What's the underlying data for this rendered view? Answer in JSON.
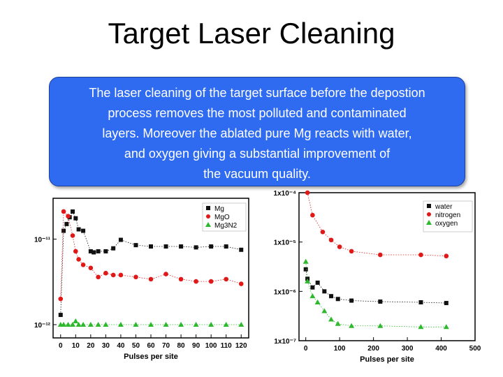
{
  "slide": {
    "title": "Target Laser Cleaning",
    "callout_text": "The laser cleaning of the target surface before the depostion\nprocess removes the most polluted and contaminated\nlayers. Moreover the ablated pure Mg reacts with water,\nand oxygen giving a substantial improvement of\nthe vacuum quality.",
    "callout_color": "#2f6bf0"
  },
  "chart_data": [
    {
      "type": "scatter",
      "xlabel": "Pulses per site",
      "ylabel": "",
      "ylog": true,
      "ylim": [
        0.07,
        3
      ],
      "xlim": [
        -5,
        125
      ],
      "x_ticks": [
        "0",
        "10",
        "20",
        "30",
        "40",
        "50",
        "60",
        "70",
        "80",
        "90",
        "100",
        "110",
        "120"
      ],
      "y_ticks": [
        "10⁻¹¹",
        "10⁻¹²"
      ],
      "legend": [
        "Mg",
        "MgO",
        "Mg3N2"
      ],
      "series": [
        {
          "name": "Mg",
          "color": "#111111",
          "marker": "square",
          "x": [
            0,
            2,
            4,
            6,
            8,
            10,
            12,
            15,
            20,
            22,
            25,
            30,
            35,
            40,
            50,
            60,
            70,
            80,
            90,
            100,
            110,
            120
          ],
          "y": [
            0.13,
            1.25,
            1.5,
            1.8,
            2.1,
            1.75,
            1.3,
            1.25,
            0.72,
            0.7,
            0.72,
            0.72,
            0.78,
            0.98,
            0.85,
            0.82,
            0.82,
            0.82,
            0.8,
            0.82,
            0.82,
            0.75
          ]
        },
        {
          "name": "MgO",
          "color": "#e01818",
          "marker": "circle",
          "x": [
            0,
            2,
            5,
            8,
            10,
            12,
            15,
            20,
            25,
            30,
            35,
            40,
            50,
            60,
            70,
            80,
            90,
            100,
            110,
            120
          ],
          "y": [
            0.2,
            2.1,
            1.85,
            1.1,
            0.72,
            0.58,
            0.5,
            0.46,
            0.36,
            0.4,
            0.38,
            0.38,
            0.36,
            0.34,
            0.39,
            0.34,
            0.32,
            0.32,
            0.34,
            0.3
          ]
        },
        {
          "name": "Mg3N2",
          "color": "#2db82d",
          "marker": "triangle",
          "x": [
            0,
            2,
            5,
            8,
            10,
            12,
            15,
            20,
            25,
            30,
            40,
            50,
            60,
            70,
            80,
            90,
            100,
            110,
            120
          ],
          "y": [
            0.1,
            0.1,
            0.1,
            0.1,
            0.11,
            0.1,
            0.1,
            0.1,
            0.1,
            0.1,
            0.1,
            0.1,
            0.1,
            0.1,
            0.1,
            0.1,
            0.1,
            0.1,
            0.1
          ]
        }
      ]
    },
    {
      "type": "scatter",
      "xlabel": "Pulses per site",
      "ylabel": "",
      "ylog": true,
      "ylim": [
        1e-07,
        0.0001
      ],
      "xlim": [
        -20,
        500
      ],
      "x_ticks": [
        "0",
        "100",
        "200",
        "300",
        "400",
        "500"
      ],
      "y_ticks": [
        "1x10⁻⁴",
        "1x10⁻⁵",
        "1x10⁻⁶",
        "1x10⁻⁷"
      ],
      "legend": [
        "water",
        "nitrogen",
        "oxygen"
      ],
      "series": [
        {
          "name": "water",
          "color": "#111111",
          "marker": "square",
          "x": [
            0,
            5,
            20,
            35,
            55,
            75,
            95,
            135,
            220,
            340,
            415
          ],
          "y": [
            2.8e-06,
            1.8e-06,
            1.2e-06,
            1.5e-06,
            1e-06,
            8e-07,
            7e-07,
            6.5e-07,
            6.2e-07,
            6e-07,
            5.8e-07
          ]
        },
        {
          "name": "nitrogen",
          "color": "#e01818",
          "marker": "circle",
          "x": [
            5,
            20,
            50,
            75,
            100,
            135,
            220,
            340,
            415
          ],
          "y": [
            0.0001,
            3.5e-05,
            1.6e-05,
            1.1e-05,
            8e-06,
            6.5e-06,
            5.5e-06,
            5.5e-06,
            5.2e-06
          ]
        },
        {
          "name": "oxygen",
          "color": "#2db82d",
          "marker": "triangle",
          "x": [
            0,
            5,
            20,
            35,
            55,
            75,
            95,
            135,
            220,
            340,
            415
          ],
          "y": [
            4e-06,
            1.6e-06,
            8e-07,
            6e-07,
            4e-07,
            2.7e-07,
            2.2e-07,
            2e-07,
            2e-07,
            1.9e-07,
            1.9e-07
          ]
        }
      ]
    }
  ]
}
